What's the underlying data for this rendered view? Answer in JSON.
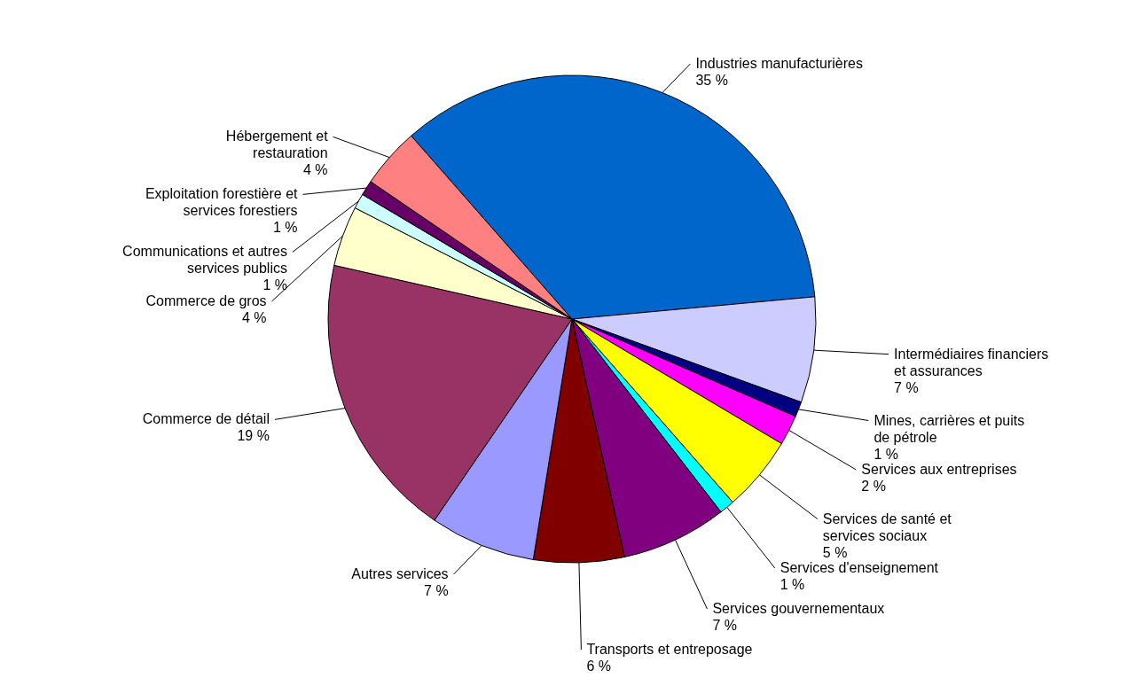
{
  "chart_data": {
    "type": "pie",
    "categories": [
      "Industries manufacturières",
      "Intermédiaires financiers et assurances",
      "Mines, carrières et puits de pétrole",
      "Services aux entreprises",
      "Services de santé et services sociaux",
      "Services d'enseignement",
      "Services gouvernementaux",
      "Transports et entreposage",
      "Autres services",
      "Commerce de détail",
      "Commerce de gros",
      "Communications et autres services publics",
      "Exploitation forestière et services forestiers",
      "Hébergement et restauration"
    ],
    "values": [
      35,
      7,
      1,
      2,
      5,
      1,
      7,
      6,
      7,
      19,
      4,
      1,
      1,
      4
    ],
    "value_labels": [
      "35 %",
      "7 %",
      "1 %",
      "2 %",
      "5 %",
      "1 %",
      "7 %",
      "6 %",
      "7 %",
      "19 %",
      "4 %",
      "1 %",
      "1 %",
      "4 %"
    ],
    "colors": [
      "#0066cc",
      "#ccccff",
      "#000080",
      "#ff00ff",
      "#ffff00",
      "#00ffff",
      "#800080",
      "#800000",
      "#9999ff",
      "#993366",
      "#ffffcc",
      "#ccffff",
      "#660066",
      "#ff8080"
    ]
  }
}
